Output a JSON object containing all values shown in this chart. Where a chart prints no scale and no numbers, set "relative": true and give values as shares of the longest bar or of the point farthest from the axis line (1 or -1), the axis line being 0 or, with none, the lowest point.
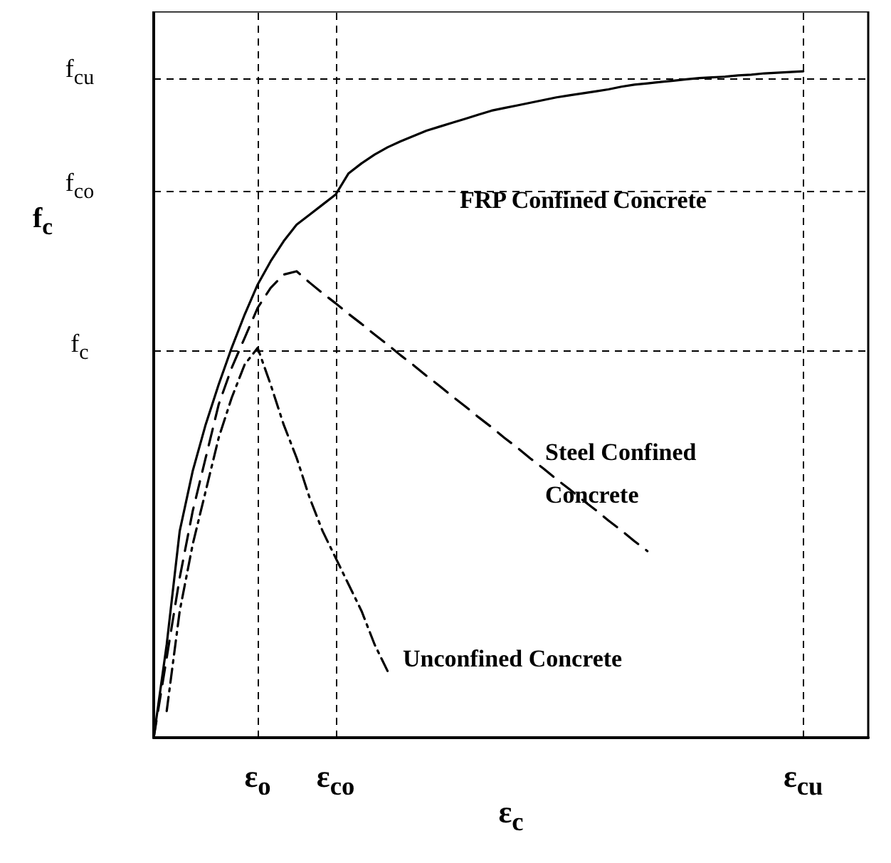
{
  "chart_data": {
    "type": "line",
    "relative": true,
    "xlabel": "ε$_{c}$",
    "ylabel": "f$_{c}$",
    "categories": [
      null,
      null,
      null,
      null,
      null,
      null,
      null,
      null,
      "ε$_{o}$",
      null,
      null,
      null,
      null,
      null,
      "ε$_{co}$",
      null,
      null,
      null,
      null,
      null,
      null,
      null,
      null,
      null,
      null,
      null,
      null,
      null,
      null,
      null,
      null,
      null,
      null,
      null,
      null,
      null,
      null,
      null,
      null,
      null,
      null,
      null,
      null,
      null,
      null,
      null,
      null,
      null,
      null,
      null,
      "ε$_{cu}$",
      null,
      null,
      null,
      null,
      null
    ],
    "series": [
      {
        "color": "#000000",
        "line_style": "solid",
        "values": [
          0,
          0.14,
          0.31,
          0.4,
          0.47,
          0.53,
          0.585,
          0.635,
          0.68,
          0.715,
          0.745,
          0.77,
          0.785,
          0.8,
          0.815,
          0.847,
          0.862,
          0.875,
          0.886,
          0.895,
          0.903,
          0.911,
          0.917,
          0.923,
          0.929,
          0.935,
          0.941,
          0.945,
          0.949,
          0.953,
          0.957,
          0.961,
          0.964,
          0.967,
          0.97,
          0.973,
          0.977,
          0.98,
          0.982,
          0.984,
          0.986,
          0.988,
          0.99,
          0.991,
          0.992,
          0.994,
          0.995,
          0.997,
          0.998,
          0.999,
          1,
          null,
          null,
          null,
          null,
          null
        ]
      },
      {
        "color": "#000000",
        "line_style": "dashed",
        "values": [
          0,
          0.12,
          0.24,
          0.34,
          0.42,
          0.5,
          0.555,
          0.6,
          0.645,
          0.675,
          0.695,
          0.7,
          0.683,
          0.667,
          0.652,
          0.636,
          0.621,
          0.605,
          0.59,
          0.574,
          0.559,
          0.543,
          0.528,
          0.512,
          0.497,
          0.481,
          0.466,
          0.45,
          0.435,
          0.419,
          0.404,
          0.388,
          0.373,
          0.357,
          0.342,
          0.326,
          0.311,
          0.295,
          0.28,
          null,
          null,
          null,
          null,
          null,
          null,
          null,
          null,
          null,
          null,
          null,
          null,
          null,
          null,
          null,
          null,
          null
        ]
      },
      {
        "color": "#000000",
        "line_style": "dotted",
        "values": [
          null,
          0.04,
          0.19,
          0.29,
          0.37,
          0.45,
          0.51,
          0.56,
          0.585,
          0.53,
          0.47,
          0.42,
          0.36,
          0.31,
          0.27,
          0.23,
          0.19,
          0.14,
          0.1,
          null,
          null,
          null,
          null,
          null,
          null,
          null,
          null,
          null,
          null,
          null,
          null,
          null,
          null,
          null,
          null,
          null,
          null,
          null,
          null,
          null,
          null,
          null,
          null,
          null,
          null,
          null,
          null,
          null,
          null,
          null,
          null,
          null,
          null,
          null,
          null,
          null
        ]
      }
    ],
    "ref_lines": [
      {
        "axis": "y",
        "value": 0.99,
        "label": "f$_{cu}$",
        "color": "#000000",
        "line_style": "dashed"
      },
      {
        "axis": "y",
        "value": 0.819,
        "label": "f$_{co}$",
        "color": "#000000",
        "line_style": "dashed"
      },
      {
        "axis": "y",
        "value": 0.577,
        "label": "f$_{c}$",
        "color": "#000000",
        "line_style": "dashed"
      },
      {
        "axis": "x",
        "value": "ε$_{o}$",
        "color": "#000000",
        "line_style": "dashed"
      },
      {
        "axis": "x",
        "value": "ε$_{co}$",
        "color": "#000000",
        "line_style": "dashed"
      },
      {
        "axis": "x",
        "value": "ε$_{cu}$",
        "color": "#000000",
        "line_style": "dashed"
      }
    ],
    "annotations": [
      "FRP Confined Concrete",
      "Steel Confined Concrete",
      "Unconfined Concrete"
    ]
  }
}
